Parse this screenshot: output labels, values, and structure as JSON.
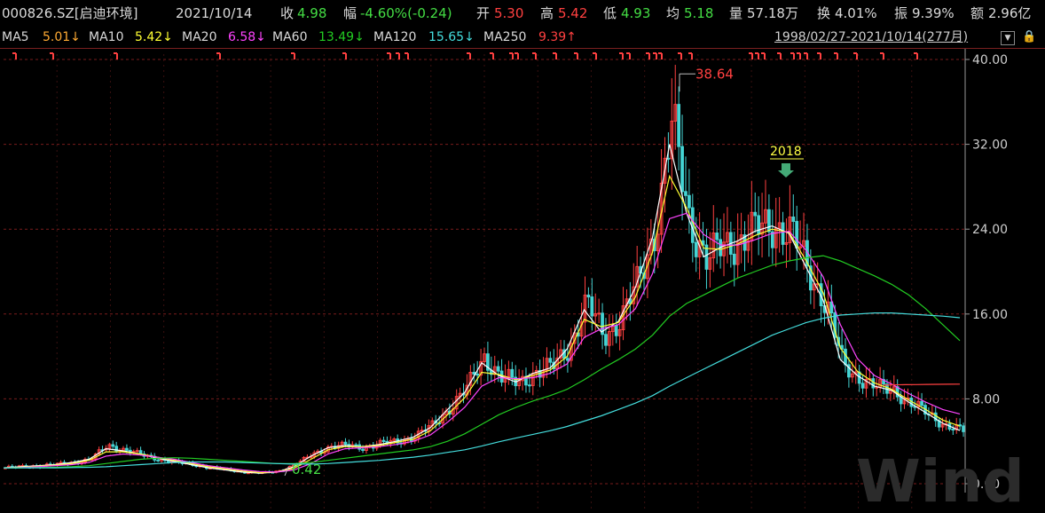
{
  "header": {
    "code": "000826.SZ[启迪环境]",
    "date": "2021/10/14",
    "close_label": "收",
    "close_value": "4.98",
    "change_label": "幅",
    "change_value": "-4.60%(-0.24)",
    "open_label": "开",
    "open_value": "5.30",
    "high_label": "高",
    "high_value": "5.42",
    "low_label": "低",
    "low_value": "4.93",
    "avg_label": "均",
    "avg_value": "5.18",
    "volume_label": "量",
    "volume_value": "57.18万",
    "turnover_label": "换",
    "turnover_value": "4.01%",
    "amplitude_label": "振",
    "amplitude_value": "9.39%",
    "amount_label": "额",
    "amount_value": "2.96亿"
  },
  "ma_bar": {
    "ma5_label": "MA5",
    "ma5_value": "5.01↓",
    "ma10_label": "MA10",
    "ma10_value": "5.42↓",
    "ma20_label": "MA20",
    "ma20_value": "6.58↓",
    "ma60_label": "MA60",
    "ma60_value": "13.49↓",
    "ma120_label": "MA120",
    "ma120_value": "15.65↓",
    "ma250_label": "MA250",
    "ma250_value": "9.39↑",
    "range": "1998/02/27-2021/10/14(277月)",
    "lock_icon": "lock-icon"
  },
  "colors": {
    "up": "#ff4040",
    "down": "#44d4d4",
    "ma5": "#ffffff",
    "ma10": "#ffff33",
    "ma20": "#ff44ff",
    "ma60": "#22cc22",
    "ma120": "#44dddd",
    "ma250": "#ff4040",
    "axis_text": "#cfcfcf",
    "grid": "#7a1c1c"
  },
  "chart_data": {
    "type": "candlestick",
    "x_range": [
      "1998/02",
      "2021/10"
    ],
    "months": 277,
    "ylim": [
      0,
      40
    ],
    "y_ticks": [
      "40.00",
      "32.00",
      "24.00",
      "16.00",
      "8.00",
      "0.00"
    ],
    "annotations": {
      "max_label": "38.64",
      "max_value": 38.64,
      "min_label": "0.42",
      "min_value": 0.42,
      "marker_label": "2018"
    },
    "close_series": [
      1.5,
      1.6,
      1.7,
      1.8,
      2.0,
      2.3,
      3.6,
      3.2,
      2.7,
      2.3,
      2.0,
      1.8,
      1.5,
      1.3,
      1.1,
      1.0,
      1.2,
      1.8,
      2.8,
      3.5,
      3.6,
      3.4,
      3.8,
      4.0,
      4.5,
      5.5,
      7.2,
      9.0,
      12.0,
      10.0,
      9.5,
      10.5,
      11.0,
      13.0,
      17.0,
      14.0,
      15.5,
      19.0,
      24.0,
      34.0,
      25.0,
      21.0,
      22.5,
      23.0,
      24.0,
      24.5,
      23.5,
      20.0,
      17.0,
      11.0,
      10.0,
      9.0,
      8.8,
      7.5,
      6.5,
      5.5,
      4.98
    ],
    "ma_series": [
      {
        "name": "MA5",
        "values": [
          1.5,
          1.6,
          1.7,
          1.8,
          2.0,
          2.3,
          3.3,
          3.1,
          2.8,
          2.4,
          2.1,
          1.8,
          1.5,
          1.3,
          1.1,
          1.0,
          1.1,
          1.6,
          2.6,
          3.4,
          3.6,
          3.5,
          3.7,
          4.0,
          4.4,
          5.3,
          7.0,
          8.6,
          11.4,
          10.2,
          9.6,
          10.4,
          10.9,
          12.7,
          16.4,
          14.3,
          15.3,
          18.5,
          23.2,
          32.0,
          25.5,
          21.4,
          22.3,
          22.9,
          23.8,
          24.3,
          23.6,
          20.4,
          17.3,
          11.7,
          10.2,
          9.2,
          8.8,
          7.7,
          6.7,
          5.7,
          5.01
        ]
      },
      {
        "name": "MA10",
        "values": [
          1.5,
          1.55,
          1.65,
          1.75,
          1.9,
          2.2,
          3.0,
          3.0,
          2.8,
          2.5,
          2.2,
          1.9,
          1.6,
          1.4,
          1.2,
          1.05,
          1.1,
          1.45,
          2.3,
          3.2,
          3.5,
          3.5,
          3.6,
          3.9,
          4.2,
          5.0,
          6.5,
          8.1,
          10.5,
          10.3,
          9.8,
          10.2,
          10.7,
          12.0,
          15.5,
          14.8,
          15.2,
          17.6,
          21.8,
          29.0,
          26.0,
          22.2,
          22.1,
          22.6,
          23.4,
          24.0,
          23.7,
          21.0,
          18.0,
          12.8,
          10.6,
          9.5,
          8.9,
          7.9,
          7.0,
          6.0,
          5.42
        ]
      },
      {
        "name": "MA20",
        "values": [
          1.5,
          1.52,
          1.6,
          1.7,
          1.8,
          2.0,
          2.6,
          2.8,
          2.7,
          2.5,
          2.3,
          2.0,
          1.7,
          1.5,
          1.3,
          1.15,
          1.1,
          1.3,
          1.9,
          2.8,
          3.3,
          3.4,
          3.5,
          3.7,
          4.0,
          4.6,
          5.8,
          7.2,
          9.2,
          10.0,
          9.9,
          10.0,
          10.4,
          11.3,
          13.8,
          14.6,
          15.0,
          16.5,
          19.8,
          25.0,
          25.5,
          23.5,
          22.5,
          22.5,
          23.0,
          23.6,
          23.8,
          22.0,
          19.5,
          15.0,
          11.8,
          10.2,
          9.4,
          8.5,
          7.7,
          7.0,
          6.58
        ]
      },
      {
        "name": "MA60",
        "values": [
          1.5,
          1.5,
          1.52,
          1.55,
          1.6,
          1.7,
          1.9,
          2.1,
          2.3,
          2.4,
          2.45,
          2.4,
          2.3,
          2.2,
          2.1,
          2.0,
          1.9,
          1.9,
          2.0,
          2.2,
          2.4,
          2.6,
          2.8,
          3.0,
          3.2,
          3.5,
          4.0,
          4.7,
          5.6,
          6.5,
          7.2,
          7.8,
          8.3,
          8.9,
          9.8,
          10.8,
          11.7,
          12.7,
          14.0,
          15.8,
          17.0,
          17.8,
          18.6,
          19.4,
          20.0,
          20.6,
          21.0,
          21.3,
          21.5,
          21.0,
          20.3,
          19.6,
          18.8,
          17.8,
          16.5,
          15.0,
          13.49
        ]
      },
      {
        "name": "MA120",
        "values": [
          1.5,
          1.5,
          1.5,
          1.5,
          1.52,
          1.55,
          1.6,
          1.7,
          1.8,
          1.9,
          2.0,
          2.05,
          2.05,
          2.05,
          2.0,
          1.95,
          1.9,
          1.85,
          1.85,
          1.9,
          2.0,
          2.1,
          2.2,
          2.35,
          2.5,
          2.7,
          2.95,
          3.2,
          3.55,
          3.95,
          4.3,
          4.65,
          5.0,
          5.4,
          5.9,
          6.4,
          7.0,
          7.6,
          8.3,
          9.2,
          10.0,
          10.8,
          11.6,
          12.4,
          13.2,
          14.0,
          14.6,
          15.2,
          15.6,
          15.9,
          16.0,
          16.1,
          16.1,
          16.0,
          15.9,
          15.8,
          15.65
        ]
      },
      {
        "name": "MA250",
        "values": [
          9.3,
          9.32,
          9.34,
          9.35,
          9.36,
          9.37,
          9.38,
          9.39
        ]
      }
    ]
  },
  "watermark": "Wind"
}
